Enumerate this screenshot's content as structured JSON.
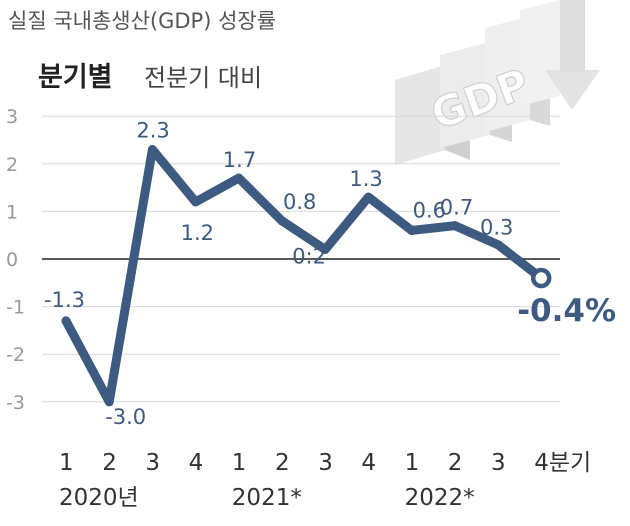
{
  "title": "실질 국내총생산(GDP) 성장률",
  "subtitle_bold": "분기별",
  "subtitle_rest": "전분기 대비",
  "decor_text": "GDP",
  "colors": {
    "series": "#3d5a80",
    "zero_line": "#222222",
    "grid": "#d7d7d7"
  },
  "chart_data": {
    "type": "line",
    "title": "실질 국내총생산(GDP) 성장률",
    "subtitle": "분기별 전분기 대비",
    "categories": [
      "1",
      "2",
      "3",
      "4",
      "1",
      "2",
      "3",
      "4",
      "1",
      "2",
      "3",
      "4분기"
    ],
    "year_labels": [
      {
        "label": "2020년",
        "start_index": 0
      },
      {
        "label": "2021*",
        "start_index": 4
      },
      {
        "label": "2022*",
        "start_index": 8
      }
    ],
    "series": [
      {
        "values": [
          -1.3,
          -3.0,
          2.3,
          1.2,
          1.7,
          0.8,
          0.2,
          1.3,
          0.6,
          0.7,
          0.3,
          -0.4
        ],
        "labels": [
          "-1.3",
          "-3.0",
          "2.3",
          "1.2",
          "1.7",
          "0.8",
          "0:2",
          "1.3",
          "0.6",
          "0.7",
          "0.3",
          "-0.4%"
        ]
      }
    ],
    "yticks": [
      3,
      2,
      1,
      0,
      -1,
      -2,
      -3
    ],
    "ylim": [
      -3,
      3
    ],
    "grid": "horizontal",
    "highlight_last": true
  }
}
